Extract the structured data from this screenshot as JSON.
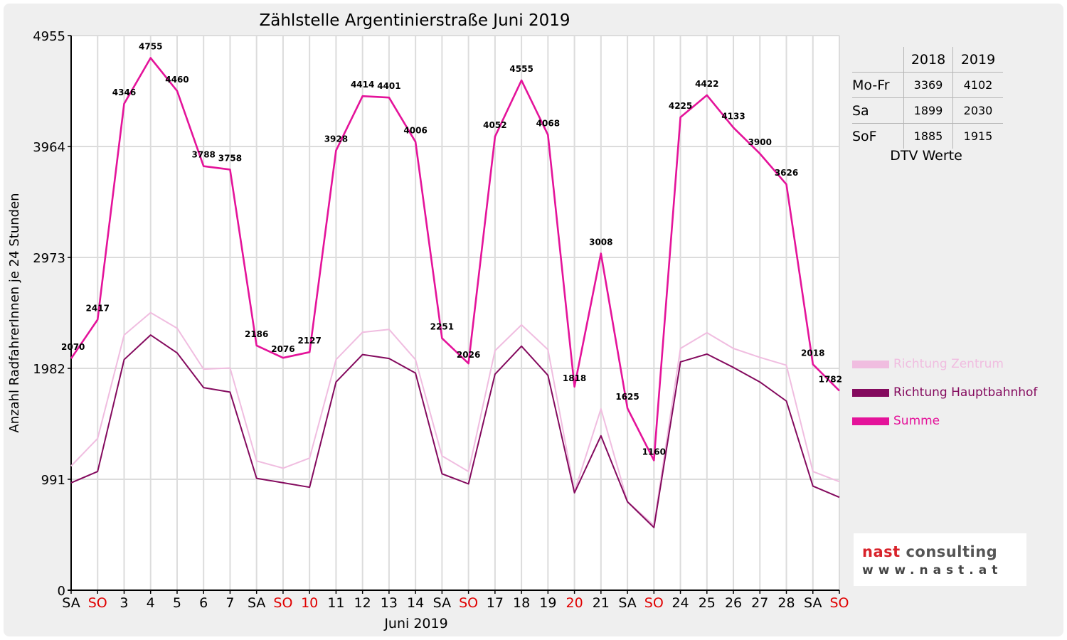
{
  "chart_data": {
    "type": "line",
    "title": "Zählstelle Argentinierstraße Juni 2019",
    "xlabel": "Juni 2019",
    "ylabel": "Anzahl RadfahrerInnen je 24 Stunden",
    "ylim": [
      0,
      4955
    ],
    "yticks": [
      "0",
      "991",
      "1982",
      "2973",
      "3964",
      "4955"
    ],
    "grid": true,
    "legend_position": "right",
    "categories": [
      "SA",
      "SO",
      "3",
      "4",
      "5",
      "6",
      "7",
      "SA",
      "SO",
      "10",
      "11",
      "12",
      "13",
      "14",
      "SA",
      "SO",
      "17",
      "18",
      "19",
      "20",
      "21",
      "SA",
      "SO",
      "24",
      "25",
      "26",
      "27",
      "28",
      "SA",
      "SO"
    ],
    "category_colors": [
      "#000000",
      "#e00000",
      "#000000",
      "#000000",
      "#000000",
      "#000000",
      "#000000",
      "#000000",
      "#e00000",
      "#e00000",
      "#000000",
      "#000000",
      "#000000",
      "#000000",
      "#000000",
      "#e00000",
      "#000000",
      "#000000",
      "#000000",
      "#e00000",
      "#000000",
      "#000000",
      "#e00000",
      "#000000",
      "#000000",
      "#000000",
      "#000000",
      "#000000",
      "#000000",
      "#e00000"
    ],
    "series": [
      {
        "name": "Richtung Zentrum",
        "color": "#f0bde0",
        "values": [
          1110,
          1355,
          2280,
          2480,
          2340,
          1975,
          1985,
          1155,
          1090,
          1180,
          2060,
          2305,
          2330,
          2060,
          1200,
          1060,
          2140,
          2370,
          2150,
          880,
          1620,
          790,
          580,
          2160,
          2300,
          2160,
          2080,
          2010,
          1060,
          970
        ]
      },
      {
        "name": "Richtung Hauptbahnhof",
        "color": "#840a5e",
        "values": [
          960,
          1060,
          2060,
          2280,
          2120,
          1810,
          1770,
          1000,
          960,
          920,
          1860,
          2105,
          2070,
          1940,
          1040,
          950,
          1930,
          2180,
          1920,
          870,
          1380,
          790,
          560,
          2040,
          2110,
          1990,
          1860,
          1690,
          930,
          830
        ]
      },
      {
        "name": "Summe",
        "color": "#e4139a",
        "values": [
          2070,
          2417,
          4346,
          4755,
          4460,
          3788,
          3758,
          2186,
          2076,
          2127,
          3928,
          4414,
          4401,
          4006,
          2251,
          2026,
          4052,
          4555,
          4068,
          1818,
          3008,
          1625,
          1160,
          4225,
          4422,
          4133,
          3900,
          3626,
          2018,
          1782
        ]
      }
    ],
    "data_labels": [
      "2070",
      "2417",
      "4346",
      "4755",
      "4460",
      "3788",
      "3758",
      "2186",
      "2076",
      "2127",
      "3928",
      "4414",
      "4401",
      "4006",
      "2251",
      "2026",
      "4052",
      "4555",
      "4068",
      "1818",
      "3008",
      "1625",
      "1160",
      "4225",
      "4422",
      "4133",
      "3900",
      "3626",
      "2018",
      "1782"
    ]
  },
  "dtv_table": {
    "headers": [
      "",
      "2018",
      "2019"
    ],
    "rows": [
      {
        "label": "Mo-Fr",
        "y2018": "3369",
        "y2019": "4102"
      },
      {
        "label": "Sa",
        "y2018": "1899",
        "y2019": "2030"
      },
      {
        "label": "SoF",
        "y2018": "1885",
        "y2019": "1915"
      }
    ],
    "caption": "DTV Werte"
  },
  "logo": {
    "brand_part1": "nast",
    "brand_part2": " consulting",
    "url": "www.nast.at"
  }
}
